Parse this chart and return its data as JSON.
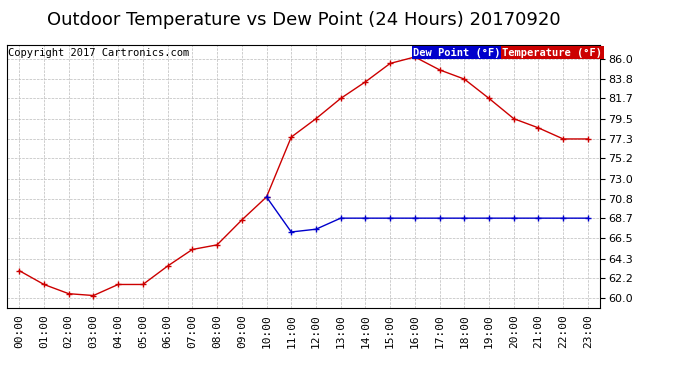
{
  "title": "Outdoor Temperature vs Dew Point (24 Hours) 20170920",
  "copyright": "Copyright 2017 Cartronics.com",
  "ylabel_right_values": [
    60.0,
    62.2,
    64.3,
    66.5,
    68.7,
    70.8,
    73.0,
    75.2,
    77.3,
    79.5,
    81.7,
    83.8,
    86.0
  ],
  "ylim": [
    59.0,
    87.5
  ],
  "background_color": "#ffffff",
  "grid_color": "#bbbbbb",
  "x_labels": [
    "00:00",
    "01:00",
    "02:00",
    "03:00",
    "04:00",
    "05:00",
    "06:00",
    "07:00",
    "08:00",
    "09:00",
    "10:00",
    "11:00",
    "12:00",
    "13:00",
    "14:00",
    "15:00",
    "16:00",
    "17:00",
    "18:00",
    "19:00",
    "20:00",
    "21:00",
    "22:00",
    "23:00"
  ],
  "temp_data": [
    63.0,
    61.5,
    60.5,
    60.3,
    61.5,
    61.5,
    63.5,
    65.3,
    65.8,
    68.5,
    71.0,
    77.5,
    79.5,
    81.7,
    83.5,
    85.5,
    86.2,
    84.8,
    83.8,
    81.7,
    79.5,
    78.5,
    77.3,
    77.3
  ],
  "dew_data": [
    null,
    null,
    null,
    null,
    null,
    null,
    null,
    null,
    null,
    null,
    71.0,
    67.2,
    67.5,
    68.7,
    68.7,
    68.7,
    68.7,
    68.7,
    68.7,
    68.7,
    68.7,
    68.7,
    68.7,
    68.7
  ],
  "temp_color": "#cc0000",
  "dew_color": "#0000cc",
  "legend_dew_bg": "#0000cc",
  "legend_temp_bg": "#cc0000",
  "legend_text_color": "#ffffff",
  "title_fontsize": 13,
  "tick_fontsize": 8,
  "copyright_fontsize": 7.5
}
